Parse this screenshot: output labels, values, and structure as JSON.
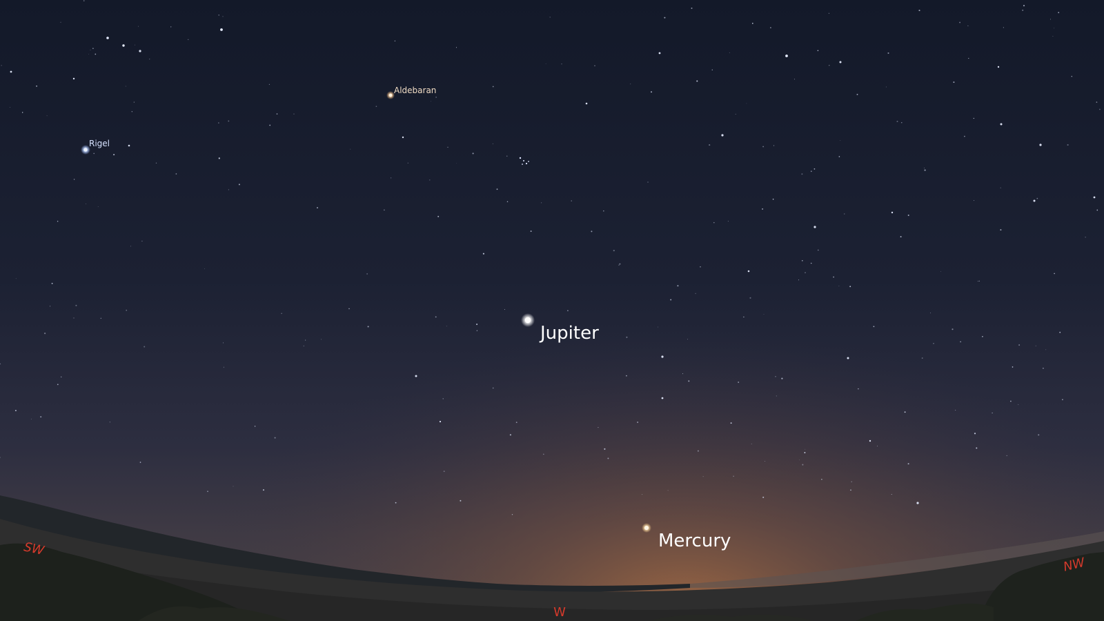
{
  "stars": {
    "aldebaran": {
      "label": "Aldebaran",
      "color": "#f2d3ad"
    },
    "rigel": {
      "label": "Rigel",
      "color": "#cfe0ff"
    }
  },
  "planets": {
    "jupiter": {
      "label": "Jupiter",
      "color": "#ffffff"
    },
    "mercury": {
      "label": "Mercury",
      "color": "#fff1d6"
    }
  },
  "cardinals": {
    "sw": "SW",
    "w": "W",
    "nw": "NW"
  },
  "colors": {
    "sky_top": "#141a2b",
    "sky_mid": "#2b2d40",
    "twilight": "#6b5546",
    "ground": "#2b2b2b",
    "cardinal": "#d53a2c",
    "label_text": "#ffffff"
  }
}
